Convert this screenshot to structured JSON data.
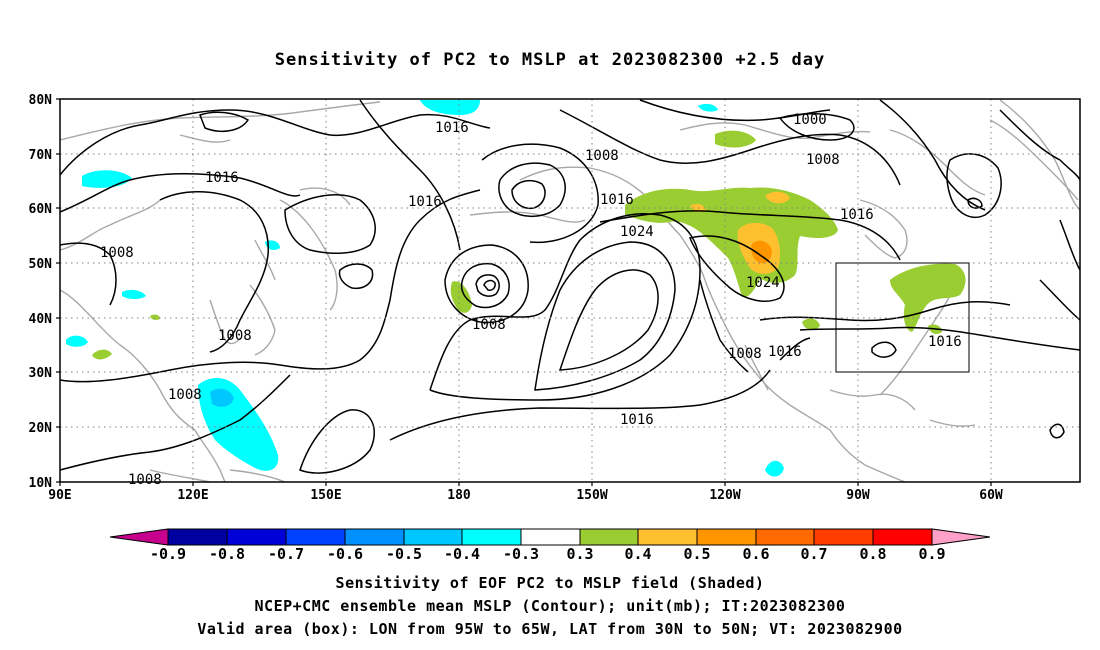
{
  "title": "Sensitivity of PC2 to MSLP at 2023082300 +2.5 day",
  "map": {
    "lat_labels": [
      "80N",
      "70N",
      "60N",
      "50N",
      "40N",
      "30N",
      "20N",
      "10N"
    ],
    "lon_labels": [
      "90E",
      "120E",
      "150E",
      "180",
      "150W",
      "120W",
      "90W",
      "60W"
    ],
    "contour_labels": [
      "1016",
      "1008",
      "1016",
      "1016",
      "1008",
      "1008",
      "1008",
      "1008",
      "1016",
      "1024",
      "1008",
      "1000",
      "1008",
      "1016",
      "1024",
      "1016",
      "1008",
      "1016",
      "1016"
    ],
    "valid_box": {
      "lon_from": "95W",
      "lon_to": "65W",
      "lat_from": "30N",
      "lat_to": "50N"
    }
  },
  "colorbar": {
    "labels": [
      "-0.9",
      "-0.8",
      "-0.7",
      "-0.6",
      "-0.5",
      "-0.4",
      "-0.3",
      "0.3",
      "0.4",
      "0.5",
      "0.6",
      "0.7",
      "0.8",
      "0.9"
    ],
    "colors": [
      "#c6008c",
      "#0000a0",
      "#0000d8",
      "#0040ff",
      "#0090ff",
      "#00c8ff",
      "#00ffff",
      "#ffffff",
      "#9acd32",
      "#ffc030",
      "#ff9600",
      "#ff6a00",
      "#ff3c00",
      "#ff0000",
      "#ffa0c8"
    ]
  },
  "captions": {
    "line1": "Sensitivity of EOF PC2 to MSLP field (Shaded)",
    "line2": "NCEP+CMC ensemble mean MSLP (Contour); unit(mb); IT:2023082300",
    "line3": "Valid area (box): LON from 95W to 65W, LAT from 30N to 50N; VT: 2023082900"
  }
}
